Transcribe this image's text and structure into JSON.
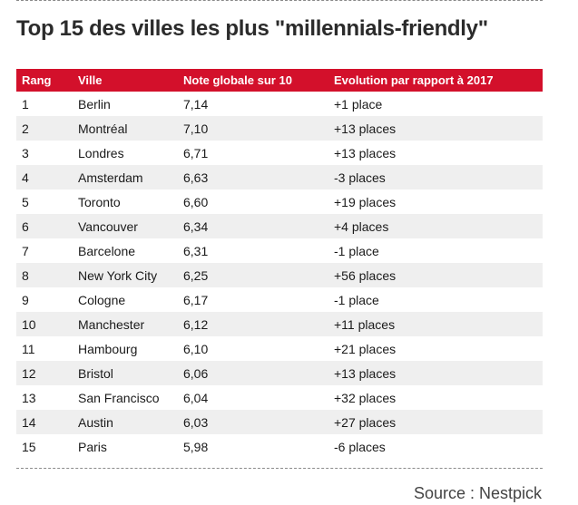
{
  "title": "Top 15 des villes les plus \"millennials-friendly\"",
  "table": {
    "headers": [
      "Rang",
      "Ville",
      "Note globale sur 10",
      "Evolution par rapport à 2017"
    ],
    "rows": [
      [
        "1",
        "Berlin",
        "7,14",
        "+1 place"
      ],
      [
        "2",
        "Montréal",
        "7,10",
        "+13 places"
      ],
      [
        "3",
        "Londres",
        "6,71",
        "+13 places"
      ],
      [
        "4",
        "Amsterdam",
        "6,63",
        "-3 places"
      ],
      [
        "5",
        "Toronto",
        "6,60",
        "+19 places"
      ],
      [
        "6",
        "Vancouver",
        "6,34",
        "+4 places"
      ],
      [
        "7",
        "Barcelone",
        "6,31",
        "-1 place"
      ],
      [
        "8",
        "New York City",
        "6,25",
        "+56 places"
      ],
      [
        "9",
        "Cologne",
        "6,17",
        "-1 place"
      ],
      [
        "10",
        "Manchester",
        "6,12",
        "+11 places"
      ],
      [
        "11",
        "Hambourg",
        "6,10",
        "+21 places"
      ],
      [
        "12",
        "Bristol",
        "6,06",
        "+13 places"
      ],
      [
        "13",
        "San Francisco",
        "6,04",
        "+32 places"
      ],
      [
        "14",
        "Austin",
        "6,03",
        "+27 places"
      ],
      [
        "15",
        "Paris",
        "5,98",
        "-6 places"
      ]
    ]
  },
  "source": "Source : Nestpick",
  "colors": {
    "header_bg": "#d3102b",
    "stripe": "#efefef"
  }
}
